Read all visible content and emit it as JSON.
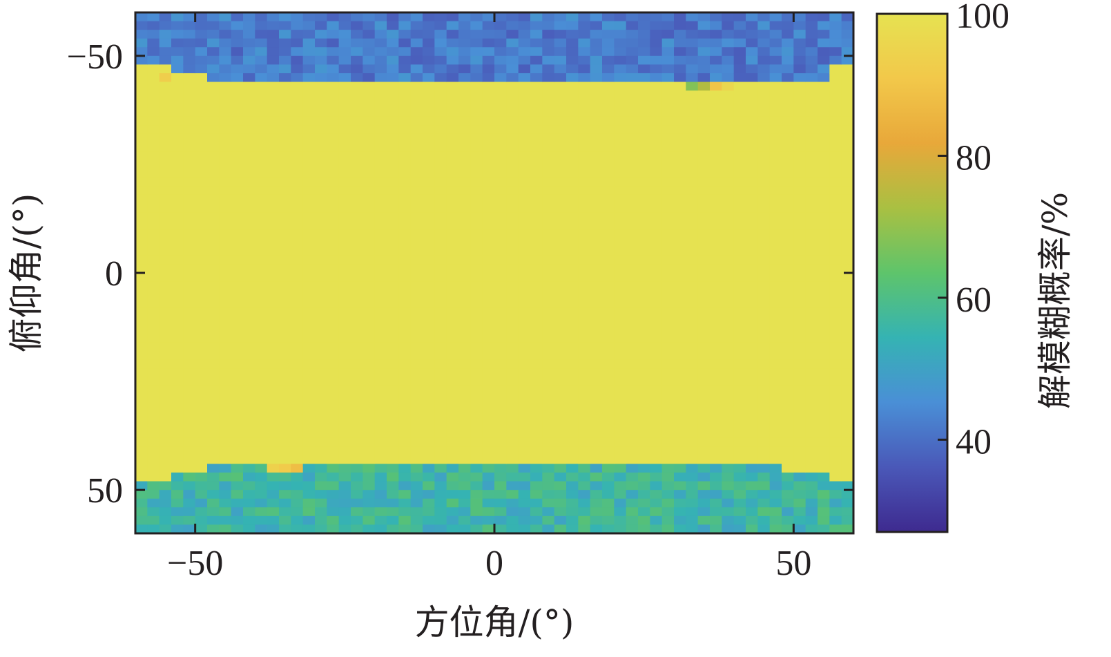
{
  "chart_data": {
    "type": "heatmap",
    "title": "",
    "xlabel": "方位角/(°)",
    "ylabel": "俯仰角/(°)",
    "colorbar_label": "解模糊概率/%",
    "x_range": [
      -60,
      60
    ],
    "y_range": [
      -60,
      60
    ],
    "y_axis_inverted": true,
    "x_ticks": [
      -50,
      0,
      50
    ],
    "x_tick_labels": [
      "−50",
      "0",
      "50"
    ],
    "y_ticks": [
      -50,
      0,
      50
    ],
    "y_tick_labels": [
      "−50",
      "0",
      "50"
    ],
    "color_range": [
      27,
      100
    ],
    "colorbar_ticks": [
      40,
      60,
      80,
      100
    ],
    "colorbar_tick_labels": [
      "40",
      "60",
      "80",
      "100"
    ],
    "colormap": "parula",
    "colormap_stops": [
      "#3e2a8f",
      "#4a58b8",
      "#4a8fd6",
      "#35b3b3",
      "#5ec46b",
      "#a9c042",
      "#e8a83a",
      "#f2c84a",
      "#e6e251"
    ],
    "grid_resolution_deg": 2,
    "regions": [
      {
        "description": "main plateau",
        "value": 100
      },
      {
        "description": "upper band (elevation ≈ −60 to −40, shrinking toward the edges)",
        "value_mean": 42,
        "value_spread": 5
      },
      {
        "description": "lower band (elevation ≈ 40 to 60, shrinking toward the edges)",
        "value_mean": 56,
        "value_spread": 6
      }
    ],
    "boundary": {
      "top_edge_by_azimuth": [
        {
          "azimuth_min": -60,
          "azimuth_max": -55,
          "elevation": -48
        },
        {
          "azimuth_min": -55,
          "azimuth_max": -48,
          "elevation": -46
        },
        {
          "azimuth_min": -48,
          "azimuth_max": -41,
          "elevation": -45
        },
        {
          "azimuth_min": -41,
          "azimuth_max": 41,
          "elevation": -44
        },
        {
          "azimuth_min": 41,
          "azimuth_max": 55,
          "elevation": -45
        },
        {
          "azimuth_min": 55,
          "azimuth_max": 60,
          "elevation": -48
        }
      ],
      "bottom_edge_by_azimuth": [
        {
          "azimuth_min": -60,
          "azimuth_max": -55,
          "elevation": 48
        },
        {
          "azimuth_min": -55,
          "azimuth_max": -48,
          "elevation": 46
        },
        {
          "azimuth_min": -48,
          "azimuth_max": -38,
          "elevation": 44
        },
        {
          "azimuth_min": -38,
          "azimuth_max": 48,
          "elevation": 44
        },
        {
          "azimuth_min": 48,
          "azimuth_max": 55,
          "elevation": 46
        },
        {
          "azimuth_min": 55,
          "azimuth_max": 60,
          "elevation": 48
        }
      ]
    },
    "highlight_cells": [
      {
        "azimuth": -56,
        "elevation": -46,
        "value": 93
      },
      {
        "azimuth": 32,
        "elevation": -44,
        "value": 68
      },
      {
        "azimuth": 34,
        "elevation": -44,
        "value": 74
      },
      {
        "azimuth": 36,
        "elevation": -44,
        "value": 90
      },
      {
        "azimuth": 38,
        "elevation": -44,
        "value": 96
      },
      {
        "azimuth": -38,
        "elevation": 44,
        "value": 94
      },
      {
        "azimuth": -36,
        "elevation": 44,
        "value": 92
      },
      {
        "azimuth": -34,
        "elevation": 44,
        "value": 88
      }
    ],
    "grid": false
  }
}
